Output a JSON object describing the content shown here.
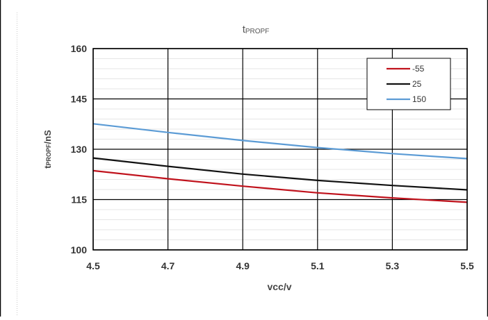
{
  "chart_data": {
    "type": "line",
    "title": "t",
    "title_sub": "PROPF",
    "ylabel_main": "t",
    "ylabel_sub": "PROPF",
    "ylabel_unit": "/nS",
    "xlabel": "vcc/v",
    "x": [
      4.5,
      4.7,
      4.9,
      5.1,
      5.3,
      5.5
    ],
    "xlim": [
      4.5,
      5.5
    ],
    "ylim": [
      100,
      160
    ],
    "xticks": [
      "4.5",
      "4.7",
      "4.9",
      "5.1",
      "5.3",
      "5.5"
    ],
    "yticks": [
      "100",
      "115",
      "130",
      "145",
      "160"
    ],
    "grid": true,
    "legend_position": "top-right",
    "series": [
      {
        "name": "-55",
        "color": "#c0121c",
        "values": [
          123.6,
          121.2,
          119.0,
          117.0,
          115.5,
          114.2
        ]
      },
      {
        "name": "25",
        "color": "#111111",
        "values": [
          127.4,
          124.9,
          122.6,
          120.7,
          119.2,
          117.9
        ]
      },
      {
        "name": "150",
        "color": "#5b9bd5",
        "values": [
          137.6,
          135.0,
          132.6,
          130.5,
          128.7,
          127.2
        ]
      }
    ]
  }
}
